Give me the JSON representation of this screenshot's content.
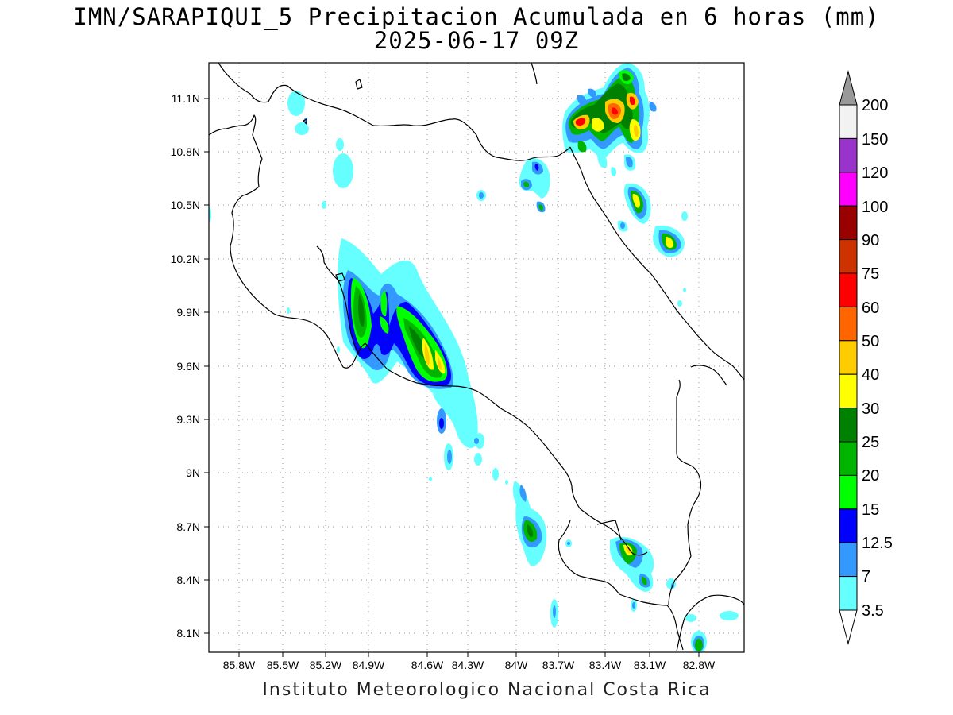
{
  "title_line1": "IMN/SARAPIQUI_5 Precipitacion Acumulada en 6 horas (mm)",
  "title_line2": "2025-06-17 09Z",
  "footer": "Instituto Meteorologico Nacional Costa Rica",
  "map": {
    "lon_range": [
      -86.05,
      -82.6
    ],
    "lat_range": [
      8.0,
      11.31
    ],
    "lon_ticks": [
      "85.8W",
      "85.5W",
      "85.2W",
      "84.9W",
      "84.6W",
      "84.3W",
      "84W",
      "83.7W",
      "83.4W",
      "83.1W",
      "82.8W"
    ],
    "lat_ticks": [
      "11.1N",
      "10.8N",
      "10.5N",
      "10.2N",
      "9.9N",
      "9.6N",
      "9.3N",
      "9N",
      "8.7N",
      "8.4N",
      "8.1N"
    ],
    "grid": "dotted"
  },
  "colorbar": {
    "labels": [
      "200",
      "150",
      "120",
      "100",
      "90",
      "75",
      "60",
      "50",
      "40",
      "30",
      "25",
      "20",
      "15",
      "12.5",
      "7",
      "3.5"
    ],
    "colors": [
      "#f2f2f2",
      "#9933cc",
      "#ff00ff",
      "#990000",
      "#cc3300",
      "#ff0000",
      "#ff6600",
      "#ffcc00",
      "#ffff00",
      "#008000",
      "#00b400",
      "#00ff00",
      "#0000ff",
      "#3399ff",
      "#66ffff"
    ],
    "over_color": "#999999",
    "under_color": "#ffffff"
  }
}
